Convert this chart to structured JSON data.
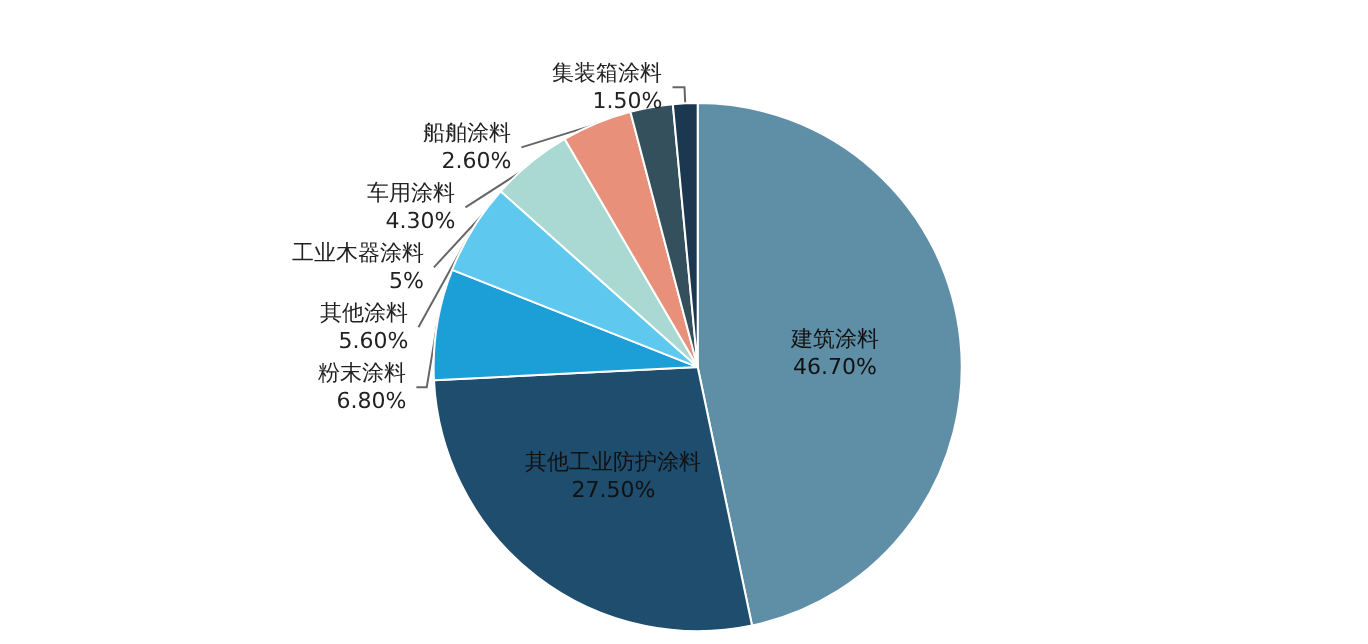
{
  "chart_data": {
    "type": "pie",
    "categories": [
      "建筑涂料",
      "其他工业防护涂料",
      "粉末涂料",
      "其他涂料",
      "工业木器涂料",
      "车用涂料",
      "船舶涂料",
      "集装箱涂料"
    ],
    "values": [
      46.7,
      27.5,
      6.8,
      5.6,
      5,
      4.3,
      2.6,
      1.5
    ],
    "value_labels": [
      "46.70%",
      "27.50%",
      "6.80%",
      "5.60%",
      "5%",
      "4.30%",
      "2.60%",
      "1.50%"
    ],
    "colors": [
      "#5f8fa6",
      "#1e4d6e",
      "#1b9fd6",
      "#5fc8ef",
      "#a9d9d2",
      "#e8907a",
      "#33505c",
      "#1c3850"
    ]
  }
}
